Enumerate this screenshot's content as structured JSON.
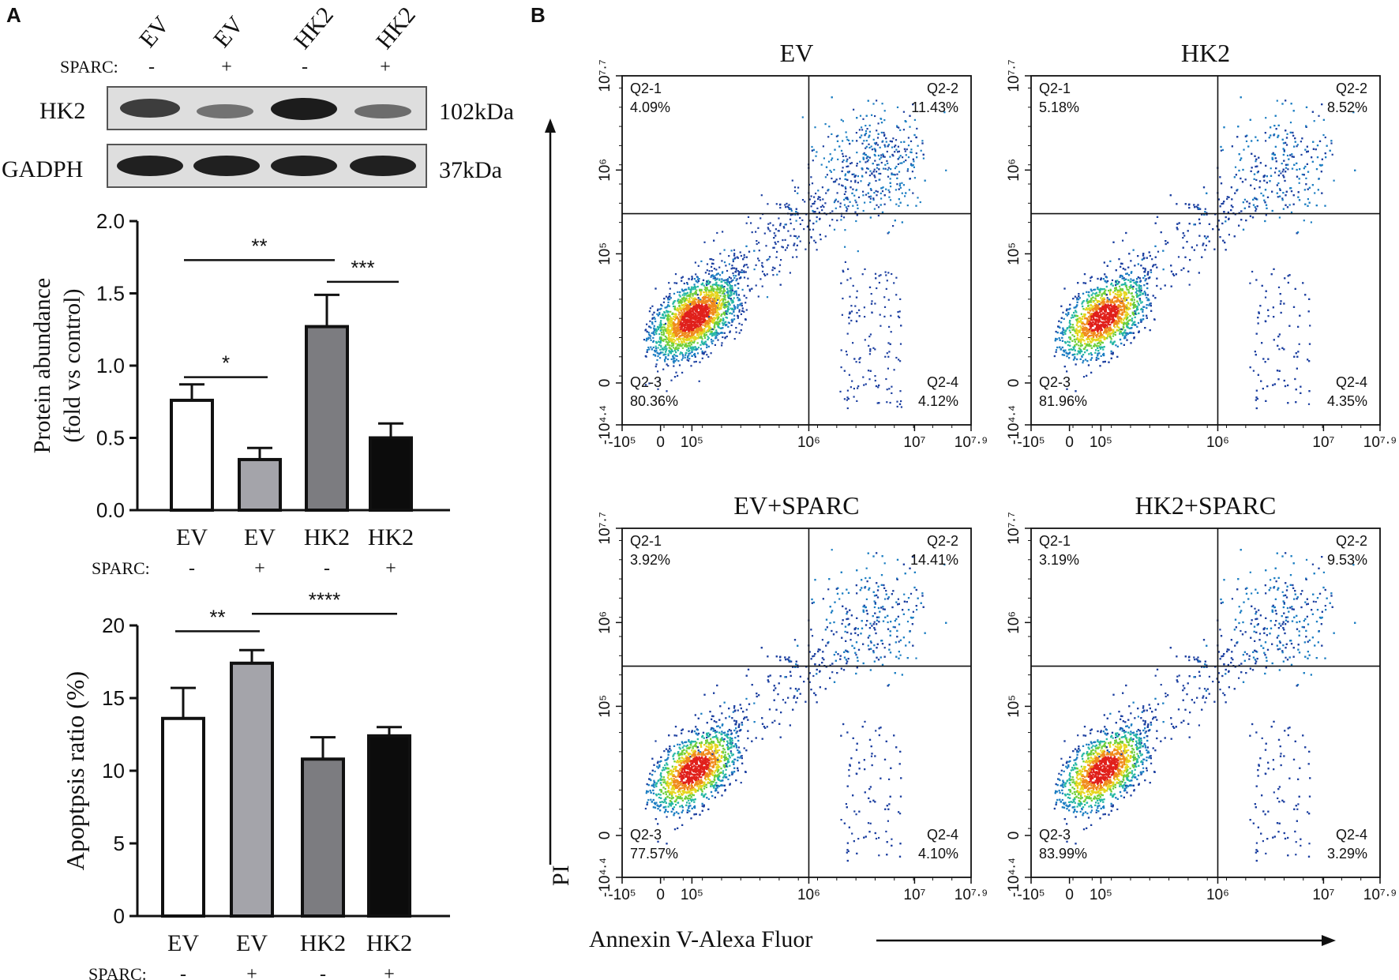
{
  "panel_labels": {
    "a": "A",
    "b": "B"
  },
  "colors": {
    "ink": "#111111",
    "bar_white": "#ffffff",
    "bar_lightgray": "#a4a4aa",
    "bar_gray": "#7c7c80",
    "bar_black": "#0c0c0c"
  },
  "western_blot": {
    "lane_labels": [
      "EV",
      "EV",
      "HK2",
      "HK2"
    ],
    "sparc_label": "SPARC:",
    "sparc_values": [
      "-",
      "+",
      "-",
      "+"
    ],
    "bands": [
      {
        "name": "HK2",
        "size": "102kDa",
        "intensities": [
          0.82,
          0.55,
          0.95,
          0.58
        ]
      },
      {
        "name": "GADPH",
        "size": "37kDa",
        "intensities": [
          0.95,
          0.95,
          0.95,
          0.95
        ]
      }
    ]
  },
  "chart_data": [
    {
      "type": "bar",
      "ylabel_line1": "Protein abundance",
      "ylabel_line2": "(fold vs control)",
      "categories": [
        "EV",
        "EV",
        "HK2",
        "HK2"
      ],
      "sparc_label": "SPARC:",
      "sparc_values": [
        "-",
        "+",
        "-",
        "+"
      ],
      "values": [
        0.76,
        0.35,
        1.27,
        0.5
      ],
      "errors": [
        0.11,
        0.08,
        0.22,
        0.1
      ],
      "ylim": [
        0,
        2.0
      ],
      "yticks": [
        0.0,
        0.5,
        1.0,
        1.5,
        2.0
      ],
      "ytick_labels": [
        "0.0",
        "0.5",
        "1.0",
        "1.5",
        "2.0"
      ],
      "bar_colors": [
        "#ffffff",
        "#a4a4aa",
        "#7c7c80",
        "#0c0c0c"
      ],
      "significance": [
        {
          "from": 0,
          "to": 1,
          "label": "*",
          "y": 0.92
        },
        {
          "from": 0,
          "to": 2,
          "label": "**",
          "y": 1.73
        },
        {
          "from": 2,
          "to": 3,
          "label": "***",
          "y": 1.58
        }
      ]
    },
    {
      "type": "bar",
      "ylabel_line1": "Apoptpsis  ratio (%)",
      "categories": [
        "EV",
        "EV",
        "HK2",
        "HK2"
      ],
      "sparc_label": "SPARC:",
      "sparc_values": [
        "-",
        "+",
        "-",
        "+"
      ],
      "values": [
        13.6,
        17.4,
        10.8,
        12.4
      ],
      "errors": [
        2.1,
        0.9,
        1.5,
        0.6
      ],
      "ylim": [
        0,
        20
      ],
      "yticks": [
        0,
        5,
        10,
        15,
        20
      ],
      "ytick_labels": [
        "0",
        "5",
        "10",
        "15",
        "20"
      ],
      "bar_colors": [
        "#ffffff",
        "#a4a4aa",
        "#7c7c80",
        "#0c0c0c"
      ],
      "significance": [
        {
          "from": 0,
          "to": 1,
          "label": "**",
          "y": 19.6
        },
        {
          "from": 1,
          "to": 3,
          "label": "****",
          "y": 20.8
        }
      ]
    },
    {
      "type": "scatter",
      "subtype": "flow-cytometry-quadrant",
      "y_axis_title": "PI",
      "x_axis_title": "Annexin V-Alexa Fluor",
      "x_tick_labels": [
        "-10⁵",
        "0",
        "10⁵",
        "10⁶",
        "10⁷",
        "10⁷·⁹"
      ],
      "y_tick_labels": [
        "-10⁴·⁴",
        "0",
        "10⁵",
        "10⁶",
        "10⁷·⁷"
      ],
      "panels": [
        {
          "title": "EV",
          "quadrants": [
            {
              "name": "Q2-1",
              "value": "4.09%"
            },
            {
              "name": "Q2-2",
              "value": "11.43%"
            },
            {
              "name": "Q2-3",
              "value": "80.36%"
            },
            {
              "name": "Q2-4",
              "value": "4.12%"
            }
          ]
        },
        {
          "title": "HK2",
          "quadrants": [
            {
              "name": "Q2-1",
              "value": "5.18%"
            },
            {
              "name": "Q2-2",
              "value": "8.52%"
            },
            {
              "name": "Q2-3",
              "value": "81.96%"
            },
            {
              "name": "Q2-4",
              "value": "4.35%"
            }
          ]
        },
        {
          "title": "EV+SPARC",
          "quadrants": [
            {
              "name": "Q2-1",
              "value": "3.92%"
            },
            {
              "name": "Q2-2",
              "value": "14.41%"
            },
            {
              "name": "Q2-3",
              "value": "77.57%"
            },
            {
              "name": "Q2-4",
              "value": "4.10%"
            }
          ]
        },
        {
          "title": "HK2+SPARC",
          "quadrants": [
            {
              "name": "Q2-1",
              "value": "3.19%"
            },
            {
              "name": "Q2-2",
              "value": "9.53%"
            },
            {
              "name": "Q2-3",
              "value": "83.99%"
            },
            {
              "name": "Q2-4",
              "value": "3.29%"
            }
          ]
        }
      ]
    }
  ]
}
